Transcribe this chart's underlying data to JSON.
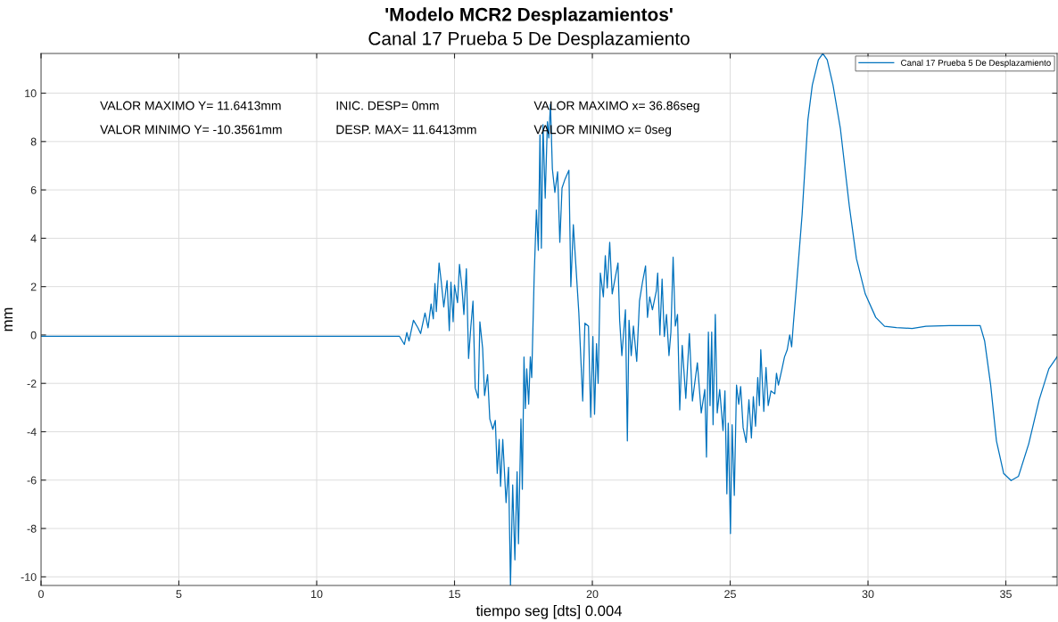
{
  "chart_data": {
    "type": "line",
    "title": "'Modelo MCR2 Desplazamientos'",
    "subtitle": "Canal 17 Prueba 5 De Desplazamiento",
    "xlabel": "tiempo seg [dts] 0.004",
    "ylabel": "mm",
    "annotations": [
      "VALOR MAXIMO Y= 11.6413mm",
      "VALOR MINIMO Y= -10.3561mm",
      "INIC. DESP= 0mm",
      "DESP. MAX= 11.6413mm",
      "VALOR MAXIMO x= 36.86seg",
      "VALOR MINIMO x= 0seg"
    ],
    "xlim": [
      0,
      36.86
    ],
    "ylim": [
      -10.3561,
      11.6413
    ],
    "xticks": [
      0,
      5,
      10,
      15,
      20,
      25,
      30,
      35
    ],
    "yticks": [
      -10,
      -8,
      -6,
      -4,
      -2,
      0,
      2,
      4,
      6,
      8,
      10
    ],
    "grid": true,
    "legend": "top right",
    "marker": "none",
    "line_style": "solid",
    "series": [
      {
        "name": "Canal 17 Prueba 5 De Desplazamiento",
        "color": "#0072bd",
        "x": [
          0,
          6,
          13.0,
          13.18,
          13.27,
          13.35,
          13.51,
          13.67,
          13.77,
          13.93,
          14.04,
          14.15,
          14.23,
          14.29,
          14.34,
          14.44,
          14.52,
          14.61,
          14.73,
          14.81,
          14.87,
          14.95,
          15.0,
          15.11,
          15.18,
          15.27,
          15.34,
          15.43,
          15.51,
          15.59,
          15.67,
          15.75,
          15.86,
          15.92,
          16.02,
          16.09,
          16.2,
          16.28,
          16.39,
          16.48,
          16.55,
          16.62,
          16.67,
          16.75,
          16.87,
          16.96,
          17.03,
          17.11,
          17.19,
          17.27,
          17.32,
          17.41,
          17.46,
          17.52,
          17.57,
          17.62,
          17.69,
          17.75,
          17.8,
          17.89,
          17.97,
          18.04,
          18.1,
          18.15,
          18.21,
          18.29,
          18.37,
          18.42,
          18.48,
          18.55,
          18.64,
          18.74,
          18.82,
          18.9,
          19.01,
          19.15,
          19.22,
          19.31,
          19.38,
          19.51,
          19.65,
          19.73,
          19.86,
          19.94,
          20.02,
          20.08,
          20.15,
          20.21,
          20.29,
          20.4,
          20.47,
          20.54,
          20.63,
          20.72,
          20.83,
          20.93,
          20.99,
          21.07,
          21.2,
          21.27,
          21.33,
          21.41,
          21.49,
          21.61,
          21.71,
          21.82,
          21.93,
          22.0,
          22.08,
          22.18,
          22.32,
          22.37,
          22.45,
          22.53,
          22.61,
          22.69,
          22.78,
          22.85,
          22.93,
          23.01,
          23.09,
          23.17,
          23.26,
          23.39,
          23.52,
          23.63,
          23.81,
          23.95,
          24.08,
          24.14,
          24.21,
          24.27,
          24.33,
          24.38,
          24.46,
          24.53,
          24.62,
          24.74,
          24.81,
          24.88,
          24.93,
          25.01,
          25.07,
          25.15,
          25.23,
          25.31,
          25.38,
          25.47,
          25.58,
          25.68,
          25.77,
          25.84,
          25.92,
          26.0,
          26.06,
          26.11,
          26.22,
          26.3,
          26.38,
          26.48,
          26.62,
          26.68,
          26.75,
          26.88,
          26.97,
          27.07,
          27.16,
          27.23,
          27.29,
          27.4,
          27.61,
          27.82,
          27.98,
          28.2,
          28.36,
          28.52,
          28.73,
          29.0,
          29.32,
          29.58,
          29.9,
          30.28,
          30.6,
          31.03,
          31.6,
          32.1,
          32.95,
          34.07,
          34.23,
          34.45,
          34.66,
          34.92,
          35.19,
          35.46,
          35.83,
          36.21,
          36.56,
          36.86
        ],
        "values": [
          -0.05,
          -0.05,
          -0.05,
          -0.39,
          0.1,
          -0.25,
          0.61,
          0.3,
          0.06,
          0.91,
          0.3,
          1.28,
          0.67,
          2.13,
          0.97,
          2.98,
          2.19,
          1.16,
          2.25,
          0.18,
          2.19,
          0.55,
          2.07,
          1.34,
          2.92,
          1.95,
          0.85,
          2.74,
          -0.97,
          0.3,
          1.4,
          -2.19,
          -2.61,
          0.55,
          -0.55,
          -2.5,
          -1.64,
          -3.47,
          -3.9,
          -3.53,
          -5.72,
          -4.32,
          -6.26,
          -4.32,
          -6.93,
          -5.47,
          -10.35,
          -6.2,
          -9.3,
          -5.65,
          -8.63,
          -3.47,
          -6.38,
          -0.91,
          -3.04,
          -1.4,
          -2.86,
          -0.9,
          -1.76,
          2.44,
          5.17,
          3.5,
          8.27,
          3.59,
          8.7,
          5.66,
          8.82,
          8.15,
          9.55,
          6.87,
          5.9,
          6.75,
          3.83,
          6.08,
          6.45,
          6.81,
          2.0,
          4.56,
          3.28,
          0.91,
          -2.73,
          0.49,
          0.37,
          -3.4,
          -0.06,
          -3.28,
          -0.36,
          -2.0,
          2.56,
          1.58,
          3.28,
          1.95,
          3.83,
          1.7,
          2.37,
          2.98,
          0.61,
          -0.85,
          1.04,
          -4.38,
          0.61,
          -0.85,
          0.37,
          -1.09,
          1.4,
          2.19,
          2.86,
          0.73,
          1.58,
          1.04,
          1.82,
          2.56,
          0.0,
          2.31,
          -0.06,
          0.85,
          -0.85,
          0.12,
          3.22,
          0.37,
          0.85,
          -3.1,
          -0.43,
          -2.62,
          0.06,
          -2.73,
          -1.15,
          -3.22,
          -2.25,
          -5.05,
          0.12,
          -2.92,
          0.12,
          -3.71,
          0.85,
          -3.22,
          -2.25,
          -3.95,
          -2.31,
          -6.57,
          -3.65,
          -8.21,
          -3.71,
          -6.63,
          -2.07,
          -2.86,
          -2.13,
          -3.83,
          -4.44,
          -2.68,
          -4.26,
          -2.55,
          -3.77,
          -1.76,
          -2.92,
          -0.61,
          -3.16,
          -1.34,
          -2.92,
          -2.31,
          -2.43,
          -1.58,
          -2.07,
          -1.4,
          -0.91,
          -0.61,
          0.0,
          -0.49,
          0.43,
          1.95,
          4.99,
          8.9,
          10.34,
          11.38,
          11.64,
          11.38,
          10.34,
          8.52,
          5.35,
          3.16,
          1.7,
          0.73,
          0.36,
          0.31,
          0.27,
          0.36,
          0.39,
          0.39,
          -0.24,
          -2.07,
          -4.38,
          -5.72,
          -6.02,
          -5.84,
          -4.5,
          -2.68,
          -1.4,
          -0.9
        ]
      }
    ]
  }
}
